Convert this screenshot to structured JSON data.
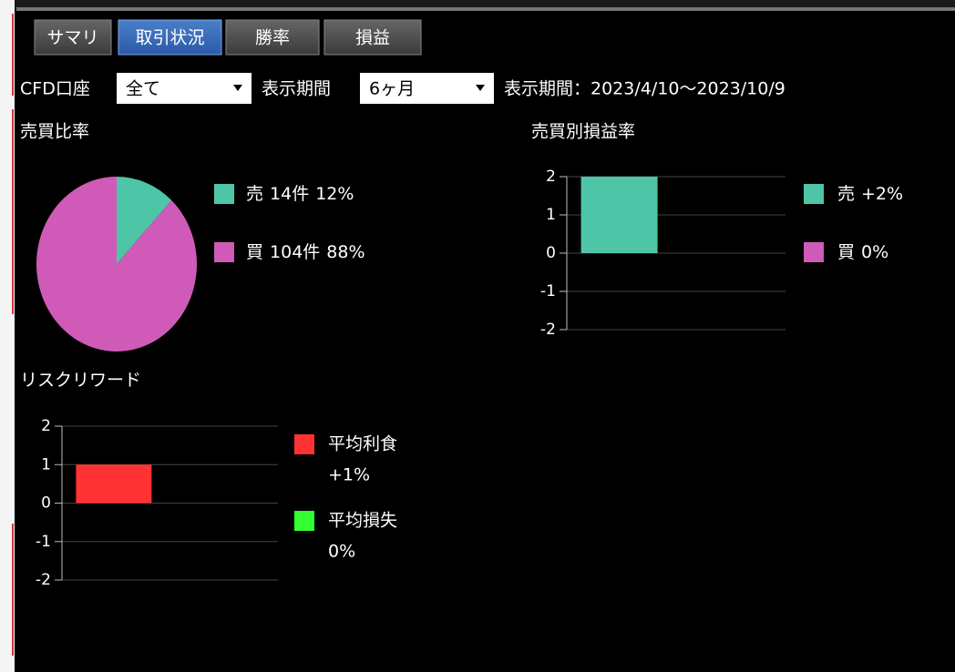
{
  "tabs": [
    "サマリ",
    "取引状況",
    "勝率",
    "損益"
  ],
  "selected_tab": 1,
  "filters": {
    "account_label": "CFD口座",
    "account_value": "全て",
    "period_label": "表示期間",
    "period_value": "6ヶ月",
    "period_range": "表示期間：2023/4/10～2023/10/9"
  },
  "chart_data": [
    {
      "type": "pie",
      "title": "売買比率",
      "categories": [
        "売",
        "買"
      ],
      "count_labels": [
        "14件",
        "104件"
      ],
      "values": [
        12,
        88
      ],
      "value_labels": [
        "12%",
        "88%"
      ],
      "colors": [
        "#4fc5a8",
        "#d05ab8"
      ]
    },
    {
      "type": "bar",
      "title": "売買別損益率",
      "categories": [
        "売",
        "買"
      ],
      "values": [
        2,
        0
      ],
      "value_labels": [
        "+2%",
        "0%"
      ],
      "colors": [
        "#4fc5a8",
        "#d05ab8"
      ],
      "ylim": [
        -2,
        2
      ],
      "yticks": [
        2,
        1,
        0,
        -1,
        -2
      ],
      "grid": true
    },
    {
      "type": "bar",
      "title": "リスクリワード",
      "categories": [
        "平均利食",
        "平均損失"
      ],
      "values": [
        1,
        0
      ],
      "value_labels": [
        "+1%",
        "0%"
      ],
      "colors": [
        "#ff3333",
        "#33ff33"
      ],
      "ylim": [
        -2,
        2
      ],
      "yticks": [
        2,
        1,
        0,
        -1,
        -2
      ],
      "grid": true
    }
  ]
}
